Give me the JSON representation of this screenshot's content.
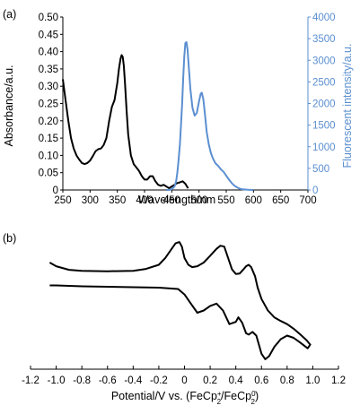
{
  "chart_data": [
    {
      "panel_label": "(a)",
      "type": "line",
      "xlabel": "Wavelength/nm",
      "ylabel_left": "Absorbance/a.u.",
      "ylabel_right": "Fluorescent intensity/a.u.",
      "xlim": [
        250,
        700
      ],
      "ylim_left": [
        0,
        0.5
      ],
      "ylim_right": [
        0,
        4000
      ],
      "x_ticks": [
        "250",
        "300",
        "350",
        "400",
        "450",
        "500",
        "550",
        "600",
        "650",
        "700"
      ],
      "y_left_ticks": [
        "0",
        "0.05",
        "0.10",
        "0.15",
        "0.20",
        "0.25",
        "0.30",
        "0.35",
        "0.40",
        "0.45",
        "0.50"
      ],
      "y_right_ticks": [
        "0",
        "500",
        "1000",
        "1500",
        "2000",
        "2500",
        "3000",
        "3500",
        "4000"
      ],
      "colors": {
        "absorbance": "#000000",
        "fluorescence": "#5b8fd0"
      },
      "series": [
        {
          "axis": "left",
          "x": [
            250,
            255,
            260,
            265,
            270,
            275,
            280,
            285,
            290,
            295,
            300,
            305,
            310,
            315,
            320,
            325,
            330,
            335,
            340,
            345,
            350,
            353,
            356,
            358,
            360,
            362,
            364,
            367,
            370,
            375,
            380,
            385,
            390,
            395,
            400,
            405,
            410,
            415,
            420,
            425,
            430,
            435,
            440,
            445,
            450,
            455,
            460,
            465,
            470,
            475,
            480
          ],
          "values": [
            0.32,
            0.26,
            0.2,
            0.15,
            0.12,
            0.1,
            0.088,
            0.078,
            0.075,
            0.078,
            0.085,
            0.098,
            0.112,
            0.118,
            0.12,
            0.13,
            0.15,
            0.2,
            0.24,
            0.26,
            0.31,
            0.35,
            0.38,
            0.39,
            0.385,
            0.36,
            0.31,
            0.23,
            0.16,
            0.1,
            0.075,
            0.065,
            0.055,
            0.04,
            0.03,
            0.03,
            0.04,
            0.04,
            0.025,
            0.015,
            0.012,
            0.015,
            0.01,
            0.005,
            0.01,
            0.015,
            0.02,
            0.022,
            0.025,
            0.018,
            0.005
          ]
        },
        {
          "axis": "right",
          "x": [
            440,
            445,
            450,
            455,
            458,
            460,
            462,
            465,
            467,
            469,
            471,
            473,
            475,
            477,
            479,
            481,
            484,
            488,
            492,
            496,
            500,
            503,
            505,
            508,
            511,
            514,
            518,
            522,
            526,
            530,
            535,
            540,
            545,
            550,
            555,
            560,
            565,
            570,
            575,
            580,
            590,
            600
          ],
          "values": [
            0,
            0,
            20,
            80,
            200,
            380,
            620,
            1050,
            1500,
            2000,
            2600,
            3100,
            3400,
            3420,
            3250,
            2900,
            2350,
            1900,
            1720,
            1780,
            2050,
            2220,
            2250,
            2100,
            1750,
            1350,
            1050,
            850,
            720,
            620,
            560,
            480,
            420,
            330,
            240,
            160,
            100,
            60,
            30,
            15,
            5,
            0
          ]
        }
      ]
    },
    {
      "panel_label": "(b)",
      "type": "line",
      "xlabel_main": "Potential/V vs. (FeCp",
      "xlabel_sup1": "+",
      "xlabel_sub1": "2",
      "xlabel_mid": "/FeCp",
      "xlabel_sup2": "0",
      "xlabel_sub2": "2",
      "xlabel_end": ")",
      "xlim": [
        -1.2,
        1.2
      ],
      "x_ticks": [
        "-1.2",
        "-1.0",
        "-0.8",
        "-0.6",
        "-0.4",
        "-0.2",
        "0",
        "0.2",
        "0.4",
        "0.6",
        "0.8",
        "1.0",
        "1.2"
      ],
      "series": [
        {
          "x": [
            -1.05,
            -1.0,
            -0.9,
            -0.8,
            -0.6,
            -0.4,
            -0.3,
            -0.2,
            -0.15,
            -0.1,
            -0.07,
            -0.04,
            -0.02,
            0.0,
            0.03,
            0.06,
            0.1,
            0.15,
            0.2,
            0.25,
            0.28,
            0.31,
            0.34,
            0.37,
            0.4,
            0.43,
            0.46,
            0.48,
            0.5,
            0.52,
            0.55,
            0.57,
            0.6,
            0.65,
            0.7,
            0.75,
            0.8,
            0.85,
            0.9,
            0.95,
            0.98,
            0.96,
            0.9,
            0.85,
            0.8,
            0.75,
            0.7,
            0.66,
            0.63,
            0.6,
            0.58,
            0.56,
            0.53,
            0.5,
            0.48,
            0.45,
            0.42,
            0.4,
            0.35,
            0.3,
            0.25,
            0.2,
            0.15,
            0.1,
            0.05,
            0.0,
            -0.05,
            -0.2,
            -0.4,
            -0.6,
            -0.8,
            -1.0,
            -1.05
          ],
          "values": [
            0.6,
            0.52,
            0.44,
            0.42,
            0.41,
            0.42,
            0.46,
            0.55,
            0.7,
            0.9,
            1.02,
            1.05,
            0.95,
            0.7,
            0.55,
            0.5,
            0.52,
            0.6,
            0.75,
            0.9,
            0.97,
            0.95,
            0.7,
            0.45,
            0.35,
            0.36,
            0.45,
            0.52,
            0.55,
            0.5,
            0.3,
            0.05,
            -0.2,
            -0.45,
            -0.6,
            -0.68,
            -0.75,
            -0.85,
            -0.97,
            -1.1,
            -1.2,
            -1.28,
            -1.15,
            -1.05,
            -1.0,
            -1.08,
            -1.25,
            -1.45,
            -1.52,
            -1.4,
            -1.2,
            -1.0,
            -0.92,
            -0.98,
            -0.95,
            -0.72,
            -0.6,
            -0.7,
            -0.75,
            -0.45,
            -0.3,
            -0.35,
            -0.45,
            -0.5,
            -0.3,
            -0.1,
            0.02,
            0.05,
            0.06,
            0.07,
            0.08,
            0.1,
            0.1
          ]
        }
      ]
    }
  ]
}
